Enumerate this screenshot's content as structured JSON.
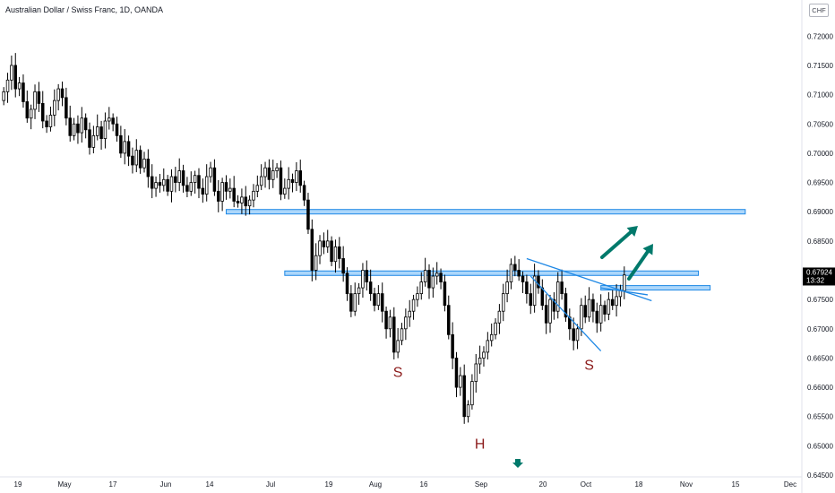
{
  "header": {
    "title": "Australian Dollar / Swiss Franc, 1D, OANDA",
    "currency": "CHF"
  },
  "colors": {
    "candle_up": "#ffffff",
    "candle_down": "#000000",
    "candle_border": "#000000",
    "zone_fill": "#90caf9",
    "zone_border": "#1e88e5",
    "trendline": "#1e88e5",
    "arrow": "#00796b",
    "pattern_label": "#8b1a1a",
    "price_badge": "#000000"
  },
  "chart_data": {
    "type": "candlestick",
    "symbol": "AUD/CHF",
    "timeframe": "1D",
    "y_axis": {
      "ticks": [
        "0.72000",
        "0.71500",
        "0.71000",
        "0.70500",
        "0.70000",
        "0.69500",
        "0.69000",
        "0.68500",
        "0.68000",
        "0.67500",
        "0.67000",
        "0.66500",
        "0.66000",
        "0.65500",
        "0.65000",
        "0.64500"
      ],
      "range": [
        0.6447,
        0.7225
      ]
    },
    "x_axis": {
      "ticks": [
        "19",
        "May",
        "17",
        "Jun",
        "14",
        "Jul",
        "19",
        "Aug",
        "16",
        "Sep",
        "20",
        "Oct",
        "18",
        "Nov",
        "15",
        "Dec"
      ]
    },
    "current_price": "0.67924",
    "countdown": "13:32",
    "close_series": [
      0.7105,
      0.7125,
      0.715,
      0.711,
      0.712,
      0.7088,
      0.706,
      0.7075,
      0.7105,
      0.7085,
      0.7055,
      0.7045,
      0.7065,
      0.709,
      0.711,
      0.7095,
      0.706,
      0.703,
      0.705,
      0.7035,
      0.706,
      0.704,
      0.701,
      0.703,
      0.7045,
      0.7025,
      0.7055,
      0.706,
      0.705,
      0.703,
      0.7,
      0.702,
      0.6995,
      0.698,
      0.7005,
      0.6975,
      0.699,
      0.696,
      0.694,
      0.695,
      0.6945,
      0.6955,
      0.6935,
      0.696,
      0.695,
      0.697,
      0.6945,
      0.6935,
      0.695,
      0.6962,
      0.694,
      0.693,
      0.696,
      0.6975,
      0.6935,
      0.6918,
      0.695,
      0.6935,
      0.694,
      0.6918,
      0.6915,
      0.6925,
      0.691,
      0.692,
      0.6935,
      0.6945,
      0.696,
      0.6975,
      0.6955,
      0.697,
      0.6975,
      0.693,
      0.694,
      0.6955,
      0.695,
      0.697,
      0.6945,
      0.692,
      0.687,
      0.68,
      0.6825,
      0.685,
      0.684,
      0.685,
      0.6815,
      0.684,
      0.682,
      0.6795,
      0.676,
      0.673,
      0.676,
      0.677,
      0.68,
      0.678,
      0.676,
      0.674,
      0.676,
      0.673,
      0.67,
      0.672,
      0.666,
      0.668,
      0.67,
      0.672,
      0.673,
      0.675,
      0.676,
      0.678,
      0.68,
      0.677,
      0.679,
      0.6795,
      0.678,
      0.674,
      0.669,
      0.665,
      0.66,
      0.662,
      0.655,
      0.657,
      0.661,
      0.664,
      0.665,
      0.666,
      0.668,
      0.669,
      0.671,
      0.673,
      0.676,
      0.678,
      0.681,
      0.68,
      0.679,
      0.678,
      0.676,
      0.674,
      0.679,
      0.677,
      0.674,
      0.671,
      0.675,
      0.673,
      0.678,
      0.676,
      0.672,
      0.67,
      0.668,
      0.67,
      0.674,
      0.672,
      0.675,
      0.673,
      0.671,
      0.674,
      0.6725,
      0.675,
      0.674,
      0.6755,
      0.6765,
      0.6792
    ],
    "zones": [
      {
        "name": "resistance-0.6900",
        "from_index": 57,
        "to_index": 190,
        "price": 0.69
      },
      {
        "name": "neckline-0.6795",
        "from_index": 72,
        "to_index": 178,
        "price": 0.6795
      },
      {
        "name": "minor-resistance-0.6770",
        "from_index": 153,
        "to_index": 181,
        "price": 0.677
      }
    ],
    "trendlines": [
      {
        "name": "upper-channel",
        "from": [
          134,
          0.682
        ],
        "to": [
          166,
          0.6748
        ]
      },
      {
        "name": "lower-channel",
        "from": [
          135,
          0.679
        ],
        "to": [
          153,
          0.6662
        ]
      },
      {
        "name": "triangle-upper",
        "from": [
          153,
          0.677
        ],
        "to": [
          165,
          0.6758
        ]
      }
    ],
    "annotations": [
      {
        "text": "S",
        "index": 101,
        "price": 0.6618
      },
      {
        "text": "H",
        "index": 122,
        "price": 0.6495
      },
      {
        "text": "S",
        "index": 150,
        "price": 0.663
      }
    ]
  }
}
